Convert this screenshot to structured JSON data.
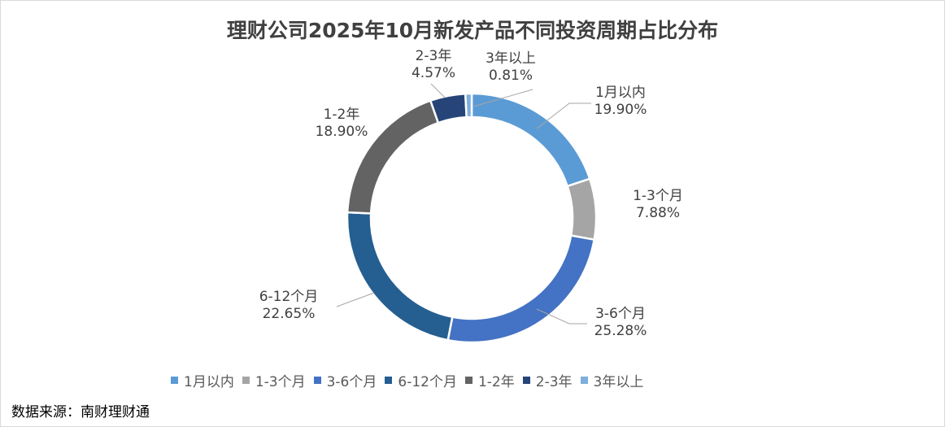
{
  "chart_data": {
    "type": "pie",
    "subtype": "donut",
    "title": "理财公司2025年10月新发产品不同投资周期占比分布",
    "categories": [
      "1月以内",
      "1-3个月",
      "3-6个月",
      "6-12个月",
      "1-2年",
      "2-3年",
      "3年以上"
    ],
    "values": [
      19.9,
      7.88,
      25.28,
      22.65,
      18.9,
      4.57,
      0.81
    ],
    "value_labels": [
      "19.90%",
      "7.88%",
      "25.28%",
      "22.65%",
      "18.90%",
      "4.57%",
      "0.81%"
    ],
    "colors": [
      "#5B9BD5",
      "#A5A5A5",
      "#4472C4",
      "#255E91",
      "#636363",
      "#264478",
      "#7CAFDD"
    ],
    "legend_position": "bottom"
  },
  "source": "数据来源：南财理财通"
}
